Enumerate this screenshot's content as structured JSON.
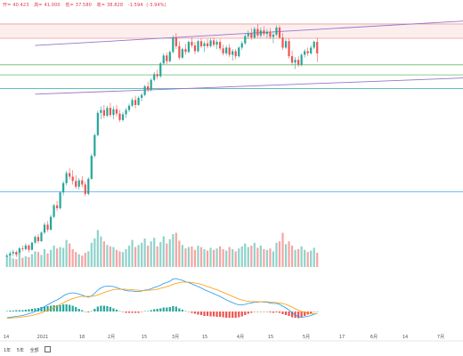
{
  "header": {
    "open_label": "开=",
    "open": "40.423",
    "high_label": "高=",
    "high": "41.000",
    "low_label": "低=",
    "low": "37.580",
    "close_label": "收=",
    "close": "38.828",
    "change": "-1.594",
    "change_pct": "(-3.94%)"
  },
  "toolbar": {
    "period_1y": "1年",
    "period_5y": "5年",
    "period_all": "全部",
    "calendar_icon": "calendar-icon"
  },
  "colors": {
    "up": "#26a69a",
    "down": "#ef5350",
    "macd_line": "#2196f3",
    "signal_line": "#ff9800",
    "channel": "#9575cd",
    "resistance": "#ef9a9a",
    "support": "#66bb6a",
    "level_blue": "#64b5f6"
  },
  "chart_data": {
    "type": "candlestick",
    "x_ticks": [
      "14",
      "2021",
      "18",
      "2月",
      "15",
      "3月",
      "15",
      "4月",
      "15",
      "5月",
      "17",
      "6月",
      "14",
      "7月"
    ],
    "candles": [
      [
        10.4,
        10.9,
        9.9,
        10.6
      ],
      [
        10.6,
        11.2,
        10.3,
        10.9
      ],
      [
        10.9,
        11.4,
        10.5,
        11.1
      ],
      [
        11.1,
        11.3,
        10.4,
        10.7
      ],
      [
        10.7,
        11.8,
        10.6,
        11.6
      ],
      [
        11.6,
        12.0,
        11.2,
        11.5
      ],
      [
        11.5,
        12.3,
        11.3,
        12.0
      ],
      [
        12.0,
        12.2,
        11.0,
        11.4
      ],
      [
        11.4,
        12.5,
        11.3,
        12.4
      ],
      [
        12.4,
        13.4,
        12.2,
        13.2
      ],
      [
        13.2,
        13.6,
        12.3,
        12.6
      ],
      [
        12.6,
        14.0,
        12.5,
        13.8
      ],
      [
        13.8,
        15.2,
        13.6,
        14.9
      ],
      [
        14.9,
        15.4,
        13.9,
        14.2
      ],
      [
        14.2,
        16.3,
        14.1,
        16.0
      ],
      [
        16.0,
        17.8,
        15.8,
        17.6
      ],
      [
        17.6,
        18.2,
        16.8,
        17.2
      ],
      [
        17.2,
        19.6,
        17.0,
        19.4
      ],
      [
        19.4,
        21.0,
        19.0,
        20.7
      ],
      [
        20.7,
        22.4,
        20.4,
        22.1
      ],
      [
        22.1,
        22.8,
        21.2,
        21.6
      ],
      [
        21.6,
        22.5,
        20.5,
        21.0
      ],
      [
        21.0,
        21.8,
        19.9,
        20.2
      ],
      [
        20.2,
        21.4,
        19.8,
        21.1
      ],
      [
        21.1,
        21.7,
        20.1,
        20.5
      ],
      [
        20.5,
        20.9,
        18.9,
        19.2
      ],
      [
        19.2,
        21.5,
        19.0,
        21.3
      ],
      [
        21.3,
        24.8,
        21.2,
        24.5
      ],
      [
        24.5,
        27.6,
        24.3,
        27.4
      ],
      [
        27.4,
        30.8,
        27.2,
        30.5
      ],
      [
        30.5,
        31.4,
        29.6,
        30.9
      ],
      [
        30.9,
        31.6,
        29.7,
        30.1
      ],
      [
        30.1,
        31.5,
        29.9,
        31.2
      ],
      [
        31.2,
        31.9,
        29.9,
        30.2
      ],
      [
        30.2,
        31.4,
        29.6,
        31.0
      ],
      [
        31.0,
        31.6,
        30.0,
        30.4
      ],
      [
        30.4,
        30.9,
        29.2,
        29.5
      ],
      [
        29.5,
        30.6,
        29.3,
        30.3
      ],
      [
        30.3,
        31.2,
        29.8,
        30.9
      ],
      [
        30.9,
        31.8,
        30.6,
        31.5
      ],
      [
        31.5,
        32.6,
        31.3,
        32.3
      ],
      [
        32.3,
        32.9,
        31.1,
        31.6
      ],
      [
        31.6,
        32.8,
        31.5,
        32.6
      ],
      [
        32.6,
        33.3,
        32.1,
        33.0
      ],
      [
        33.0,
        34.4,
        32.8,
        34.2
      ],
      [
        34.2,
        34.8,
        33.4,
        33.7
      ],
      [
        33.7,
        35.3,
        33.5,
        35.1
      ],
      [
        35.1,
        36.2,
        34.9,
        35.9
      ],
      [
        35.9,
        36.5,
        35.2,
        35.6
      ],
      [
        35.6,
        37.6,
        35.4,
        37.4
      ],
      [
        37.4,
        38.8,
        37.2,
        38.5
      ],
      [
        38.5,
        38.9,
        37.3,
        37.7
      ],
      [
        37.7,
        39.2,
        37.5,
        39.0
      ],
      [
        39.0,
        41.3,
        38.8,
        41.0
      ],
      [
        41.0,
        41.6,
        39.4,
        39.8
      ],
      [
        39.8,
        40.5,
        37.9,
        38.2
      ],
      [
        38.2,
        39.6,
        38.0,
        39.4
      ],
      [
        39.4,
        40.1,
        38.6,
        39.0
      ],
      [
        39.0,
        40.6,
        38.8,
        40.4
      ],
      [
        40.4,
        41.0,
        39.6,
        39.9
      ],
      [
        39.9,
        40.4,
        38.7,
        39.1
      ],
      [
        39.1,
        40.7,
        38.9,
        40.5
      ],
      [
        40.5,
        40.9,
        39.5,
        39.8
      ],
      [
        39.8,
        40.5,
        39.0,
        40.2
      ],
      [
        40.2,
        40.8,
        39.5,
        39.8
      ],
      [
        39.8,
        40.9,
        39.6,
        40.6
      ],
      [
        40.6,
        41.0,
        39.7,
        40.0
      ],
      [
        40.0,
        40.7,
        39.4,
        40.4
      ],
      [
        40.4,
        40.8,
        39.2,
        39.5
      ],
      [
        39.5,
        40.0,
        38.5,
        38.8
      ],
      [
        38.8,
        39.9,
        38.5,
        39.6
      ],
      [
        39.6,
        40.1,
        38.3,
        38.6
      ],
      [
        38.6,
        39.4,
        37.8,
        39.1
      ],
      [
        39.1,
        39.4,
        38.0,
        38.4
      ],
      [
        38.4,
        39.8,
        38.2,
        39.6
      ],
      [
        39.6,
        40.5,
        39.3,
        40.2
      ],
      [
        40.2,
        41.5,
        40.0,
        41.2
      ],
      [
        41.2,
        42.0,
        40.8,
        41.6
      ],
      [
        41.6,
        42.3,
        40.7,
        41.0
      ],
      [
        41.0,
        42.5,
        40.8,
        42.2
      ],
      [
        42.2,
        42.9,
        41.0,
        41.3
      ],
      [
        41.3,
        42.4,
        41.0,
        42.0
      ],
      [
        42.0,
        42.6,
        41.2,
        41.5
      ],
      [
        41.5,
        42.2,
        40.9,
        41.8
      ],
      [
        41.8,
        42.3,
        40.8,
        41.1
      ],
      [
        41.1,
        41.8,
        40.2,
        41.4
      ],
      [
        41.4,
        42.7,
        41.2,
        42.4
      ],
      [
        42.4,
        42.7,
        40.8,
        41.0
      ],
      [
        41.0,
        41.6,
        39.3,
        39.6
      ],
      [
        39.6,
        40.8,
        39.4,
        40.5
      ],
      [
        40.5,
        40.9,
        38.1,
        38.4
      ],
      [
        38.4,
        39.2,
        37.2,
        37.5
      ],
      [
        37.5,
        38.3,
        36.6,
        37.9
      ],
      [
        37.9,
        38.4,
        36.9,
        37.2
      ],
      [
        37.2,
        38.8,
        37.0,
        38.6
      ],
      [
        38.6,
        39.4,
        38.2,
        39.1
      ],
      [
        39.1,
        39.6,
        38.4,
        38.8
      ],
      [
        38.8,
        39.9,
        38.6,
        39.6
      ],
      [
        39.6,
        40.6,
        39.4,
        40.4
      ],
      [
        40.4,
        41.0,
        37.6,
        38.8
      ]
    ],
    "volume": [
      14,
      16,
      12,
      11,
      20,
      13,
      15,
      14,
      18,
      22,
      21,
      17,
      25,
      19,
      24,
      30,
      26,
      28,
      27,
      38,
      33,
      25,
      21,
      18,
      16,
      20,
      22,
      34,
      40,
      52,
      43,
      36,
      31,
      29,
      28,
      24,
      22,
      21,
      25,
      30,
      38,
      28,
      31,
      34,
      40,
      30,
      36,
      41,
      29,
      35,
      43,
      33,
      39,
      46,
      48,
      37,
      31,
      26,
      28,
      29,
      24,
      30,
      28,
      25,
      23,
      27,
      24,
      26,
      29,
      25,
      23,
      28,
      25,
      22,
      26,
      29,
      33,
      28,
      30,
      34,
      27,
      30,
      25,
      24,
      26,
      22,
      34,
      36,
      48,
      32,
      36,
      30,
      24,
      25,
      29,
      24,
      21,
      23,
      27,
      20
    ],
    "macd": [
      -1.4,
      -1.3,
      -1.2,
      -1.1,
      -1.0,
      -0.9,
      -0.7,
      -0.5,
      -0.3,
      0.0,
      0.3,
      0.7,
      1.1,
      1.5,
      1.9,
      2.3,
      2.6,
      3.0,
      3.5,
      3.9,
      4.1,
      4.2,
      4.1,
      3.9,
      3.7,
      3.4,
      3.2,
      3.5,
      4.1,
      4.8,
      5.3,
      5.6,
      5.7,
      5.7,
      5.6,
      5.4,
      5.1,
      4.9,
      4.7,
      4.6,
      4.6,
      4.5,
      4.5,
      4.6,
      4.8,
      4.9,
      5.1,
      5.4,
      5.6,
      5.9,
      6.3,
      6.5,
      6.8,
      7.3,
      7.4,
      7.2,
      7.0,
      6.7,
      6.5,
      6.2,
      5.9,
      5.6,
      5.3,
      4.9,
      4.6,
      4.3,
      4.0,
      3.7,
      3.4,
      3.0,
      2.6,
      2.3,
      2.0,
      1.7,
      1.5,
      1.5,
      1.6,
      1.8,
      1.9,
      2.1,
      2.1,
      2.2,
      2.1,
      2.1,
      1.9,
      1.8,
      1.8,
      1.6,
      1.2,
      0.8,
      0.3,
      -0.3,
      -0.8,
      -1.2,
      -1.3,
      -1.2,
      -1.1,
      -0.9,
      -0.6,
      -0.5
    ],
    "signal": [
      -1.5,
      -1.5,
      -1.4,
      -1.4,
      -1.3,
      -1.2,
      -1.1,
      -1.0,
      -0.9,
      -0.7,
      -0.5,
      -0.3,
      0.0,
      0.3,
      0.6,
      0.9,
      1.2,
      1.6,
      1.9,
      2.3,
      2.6,
      2.9,
      3.1,
      3.3,
      3.4,
      3.4,
      3.4,
      3.4,
      3.5,
      3.7,
      4.0,
      4.3,
      4.5,
      4.7,
      4.9,
      5.0,
      5.0,
      5.0,
      5.0,
      4.9,
      4.9,
      4.8,
      4.8,
      4.7,
      4.7,
      4.8,
      4.8,
      4.9,
      5.0,
      5.2,
      5.4,
      5.6,
      5.8,
      6.1,
      6.3,
      6.5,
      6.6,
      6.6,
      6.6,
      6.5,
      6.4,
      6.3,
      6.1,
      5.9,
      5.6,
      5.4,
      5.1,
      4.9,
      4.6,
      4.3,
      4.0,
      3.7,
      3.4,
      3.1,
      2.8,
      2.6,
      2.4,
      2.3,
      2.2,
      2.2,
      2.2,
      2.2,
      2.2,
      2.2,
      2.1,
      2.1,
      2.0,
      1.9,
      1.8,
      1.6,
      1.3,
      1.0,
      0.6,
      0.3,
      0.0,
      -0.2,
      -0.4,
      -0.5,
      -0.5,
      -0.5
    ],
    "price_range": [
      9,
      45
    ],
    "h_levels": {
      "resistance": [
        42.9,
        40.9
      ],
      "support": [
        37.2,
        35.8
      ],
      "level_2": 33.9,
      "level_1": 19.5
    },
    "channel": {
      "upper": [
        [
          9,
          39.9
        ],
        [
          238,
          45.6
        ]
      ],
      "lower": [
        [
          9,
          33.1
        ],
        [
          238,
          36.9
        ]
      ]
    },
    "macd_range": [
      -6,
      10
    ]
  }
}
